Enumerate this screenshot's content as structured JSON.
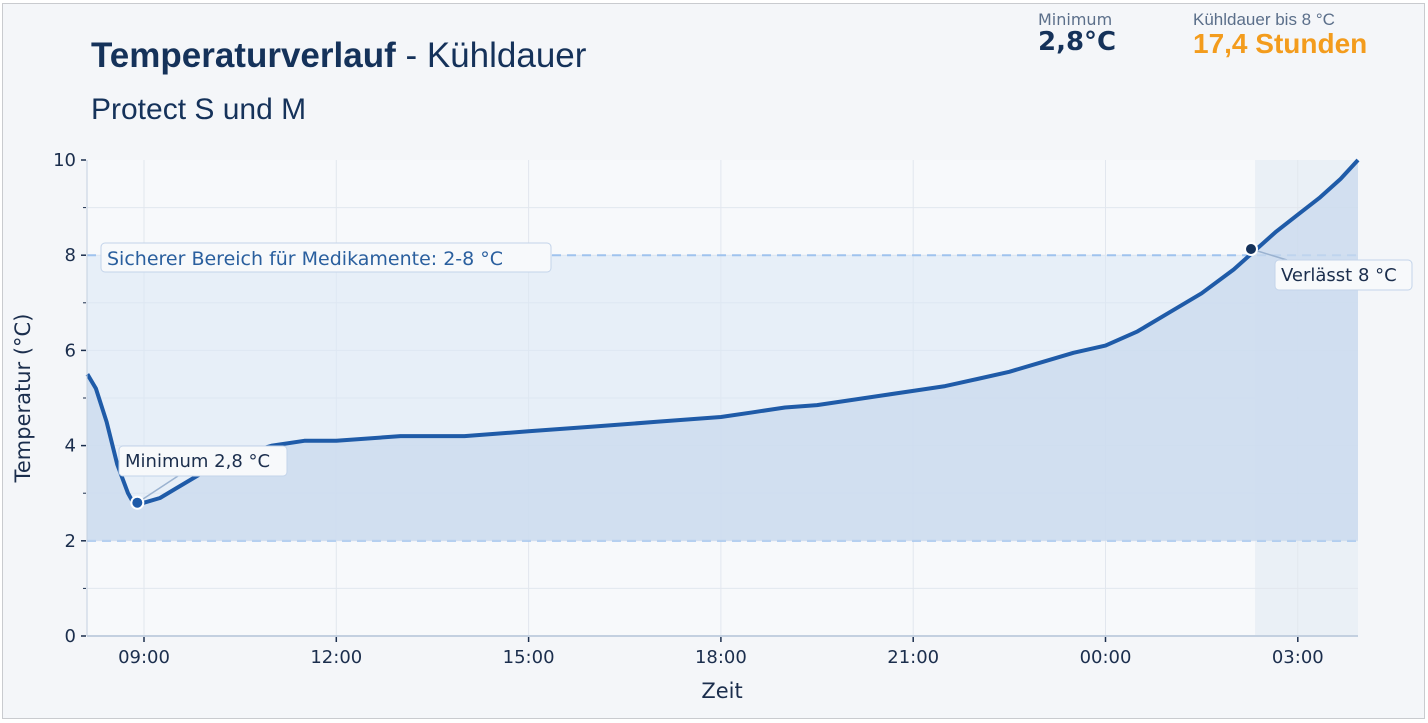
{
  "header": {
    "title_bold": "Temperaturverlauf",
    "title_rest": " - Kühldauer",
    "subtitle": "Protect S und M"
  },
  "kpis": [
    {
      "label": "Minimum",
      "value": "2,8°C",
      "color": "#15325a"
    },
    {
      "label": "Kühldauer bis 8 °C",
      "value": "17,4 Stunden",
      "color": "#f39c1d"
    }
  ],
  "chart_data": {
    "type": "line",
    "title": "Temperaturverlauf - Kühldauer",
    "subtitle": "Protect S und M",
    "xlabel": "Zeit",
    "ylabel": "Temperatur (°C)",
    "ylim": [
      0,
      10
    ],
    "yticks": [
      "0",
      "2",
      "4",
      "6",
      "8",
      "10"
    ],
    "xticks": [
      "09:00",
      "12:00",
      "15:00",
      "18:00",
      "21:00",
      "00:00",
      "03:00"
    ],
    "grid": true,
    "safe_band": {
      "min": 2,
      "max": 8,
      "label": "Sicherer Bereich für Medikamente: 2-8 °C",
      "color": "#9fc3ee"
    },
    "annotations": [
      {
        "label": "Minimum 2,8 °C",
        "x": "08:50",
        "y": 2.8
      },
      {
        "label": "Verlässt 8 °C",
        "x": "02:20",
        "y": 8.1
      }
    ],
    "highlight_region": {
      "from": "02:20",
      "to": "03:55"
    },
    "series": [
      {
        "name": "Temperatur",
        "color": "#1f5ba8",
        "x": [
          "08:07",
          "08:15",
          "08:25",
          "08:35",
          "08:45",
          "08:50",
          "09:00",
          "09:15",
          "09:30",
          "09:45",
          "10:00",
          "10:30",
          "11:00",
          "11:30",
          "12:00",
          "13:00",
          "14:00",
          "15:00",
          "16:00",
          "17:00",
          "18:00",
          "18:30",
          "19:00",
          "19:30",
          "20:00",
          "20:30",
          "21:00",
          "21:30",
          "22:00",
          "22:30",
          "23:00",
          "23:30",
          "00:00",
          "00:30",
          "01:00",
          "01:30",
          "02:00",
          "02:20",
          "02:40",
          "03:00",
          "03:20",
          "03:40",
          "03:55"
        ],
        "values": [
          5.5,
          5.2,
          4.5,
          3.6,
          3.0,
          2.8,
          2.8,
          2.9,
          3.1,
          3.3,
          3.5,
          3.8,
          4.0,
          4.1,
          4.1,
          4.2,
          4.2,
          4.3,
          4.4,
          4.5,
          4.6,
          4.7,
          4.8,
          4.85,
          4.95,
          5.05,
          5.15,
          5.25,
          5.4,
          5.55,
          5.75,
          5.95,
          6.1,
          6.4,
          6.8,
          7.2,
          7.7,
          8.1,
          8.5,
          8.85,
          9.2,
          9.6,
          10.0
        ]
      }
    ]
  }
}
